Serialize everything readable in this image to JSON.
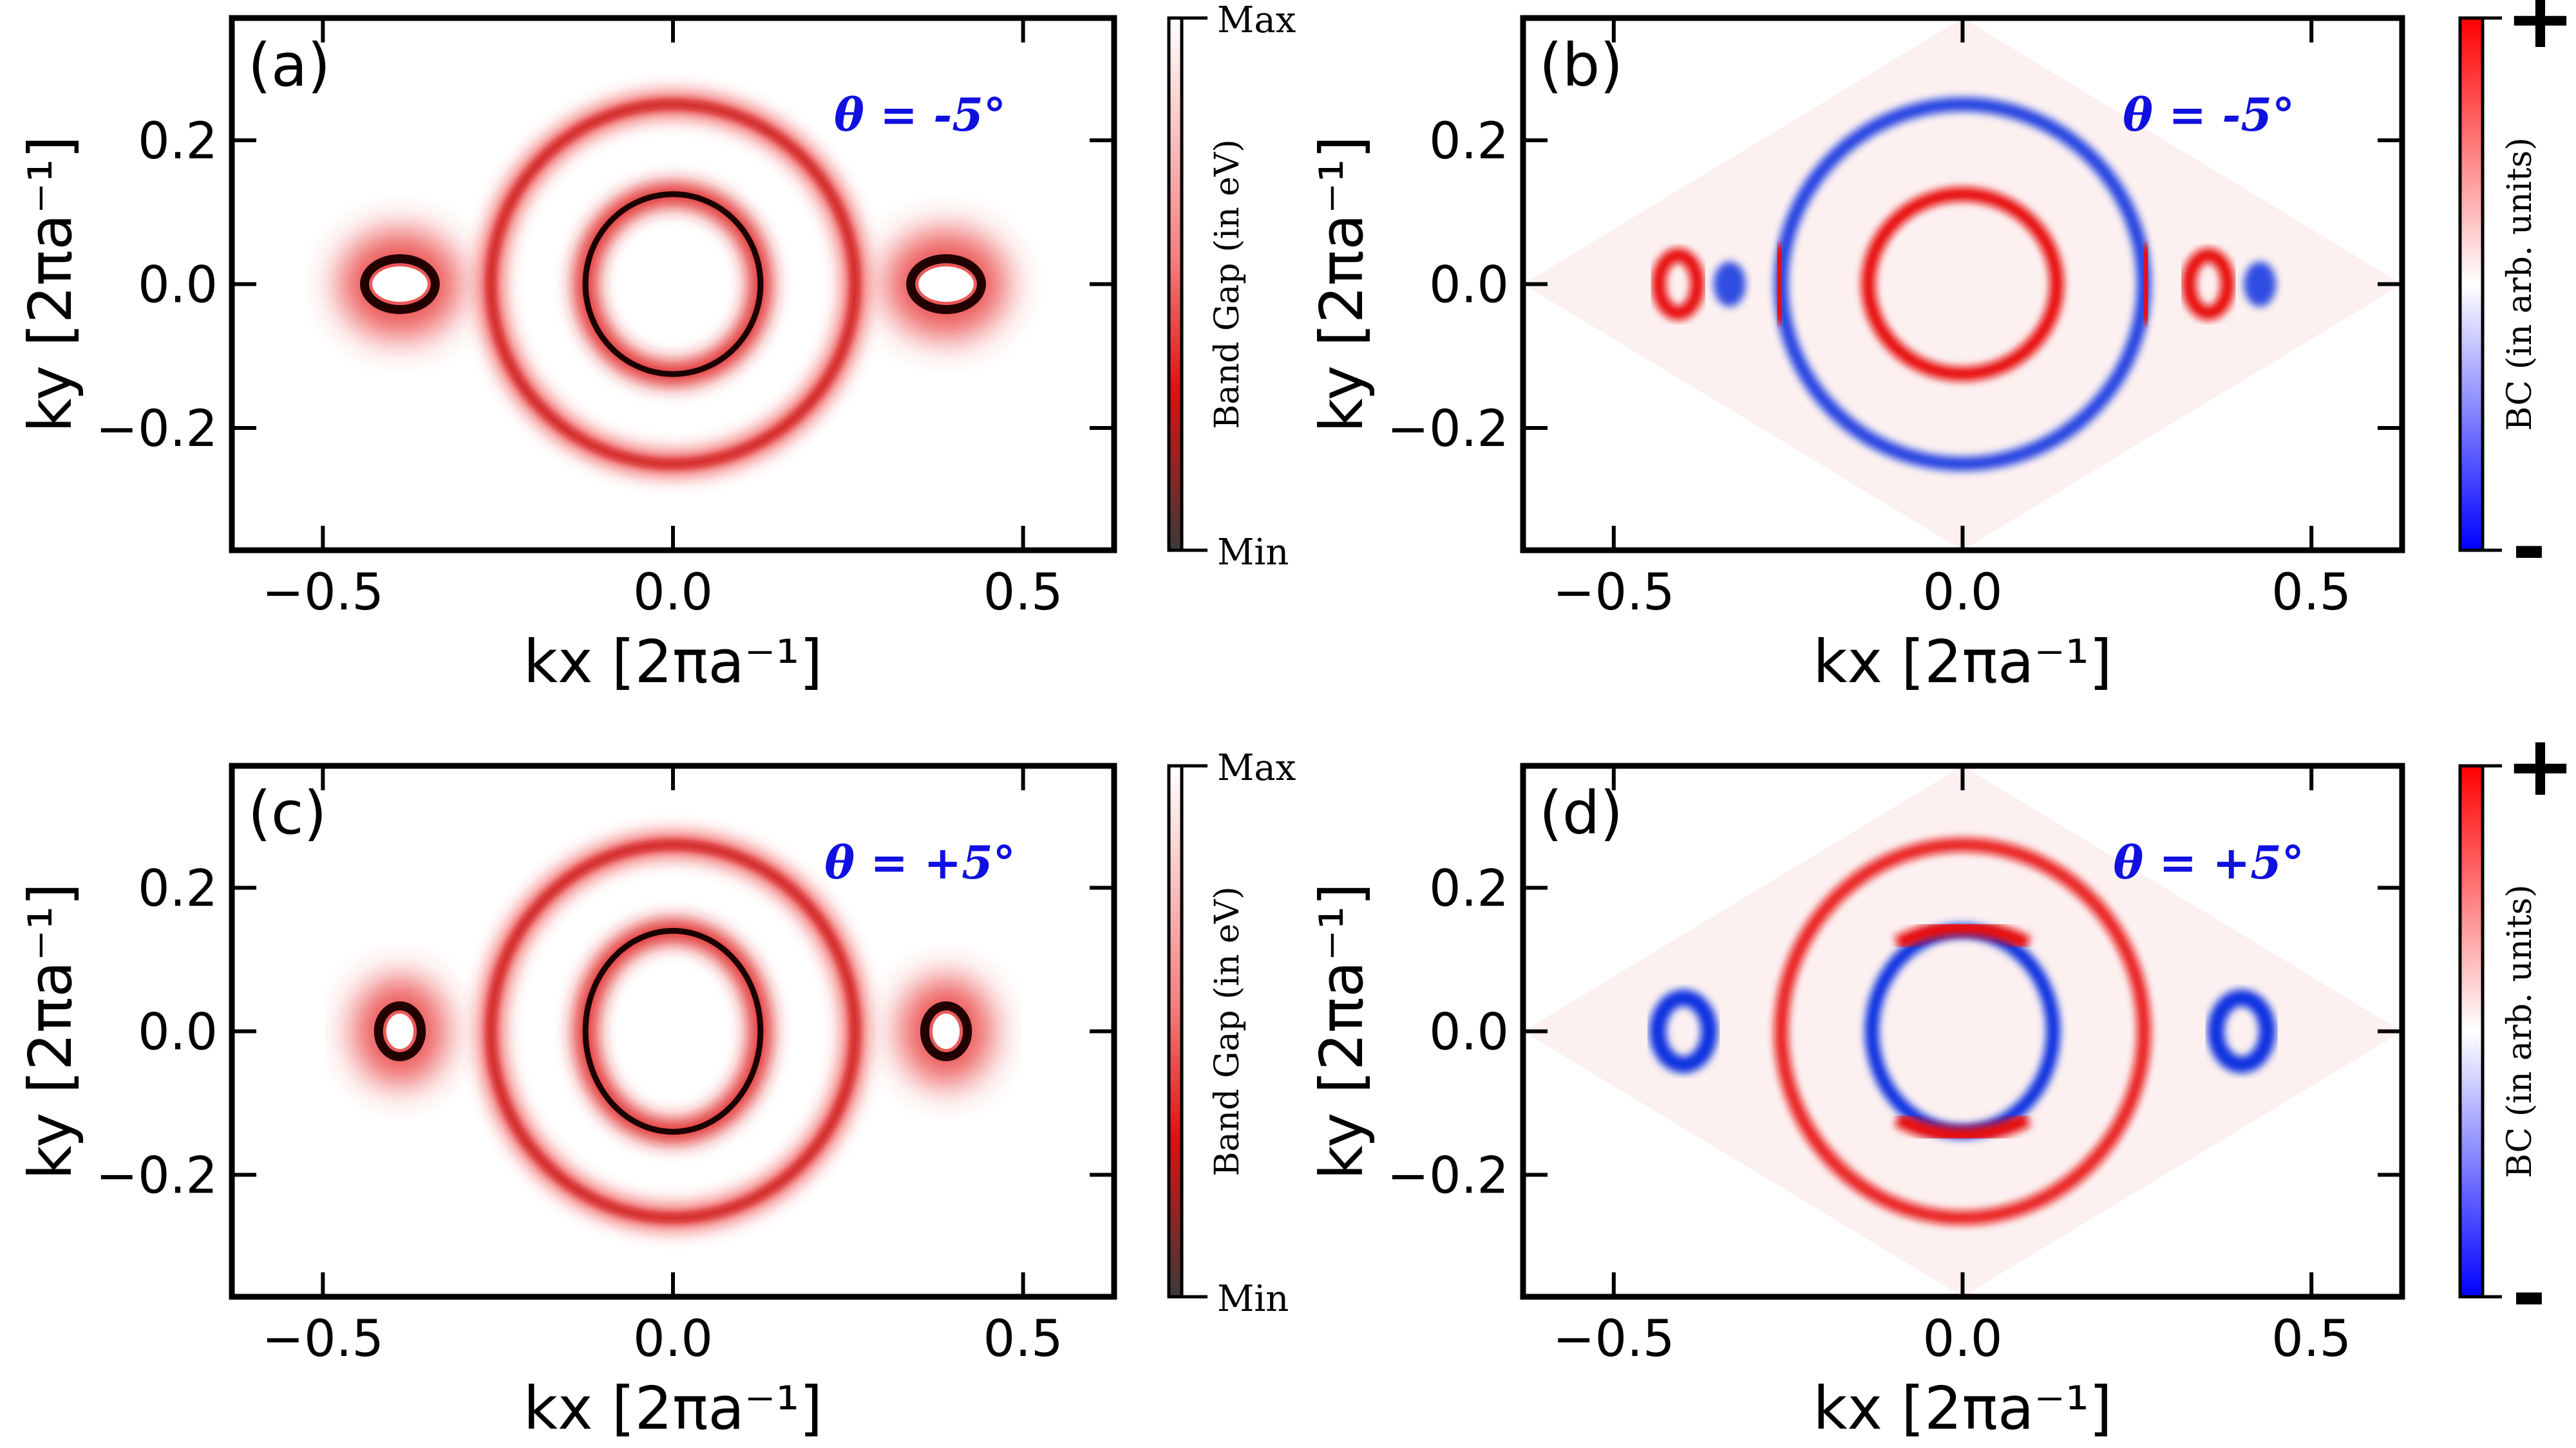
{
  "figure": {
    "panels": [
      {
        "id": "a",
        "label": "(a)",
        "theta": "θ = -5°",
        "kind": "gap",
        "xlabel": "kx [2πa⁻¹]",
        "ylabel": "ky [2πa⁻¹]",
        "colorbar": {
          "title": "Band Gap (in eV)",
          "top": "Max",
          "bottom": "Min"
        }
      },
      {
        "id": "b",
        "label": "(b)",
        "theta": "θ = -5°",
        "kind": "bc",
        "xlabel": "kx [2πa⁻¹]",
        "ylabel": "ky [2πa⁻¹]",
        "colorbar": {
          "title": "BC (in arb. units)",
          "top": "+",
          "bottom": "-"
        }
      },
      {
        "id": "c",
        "label": "(c)",
        "theta": "θ = +5°",
        "kind": "gap",
        "xlabel": "kx [2πa⁻¹]",
        "ylabel": "ky [2πa⁻¹]",
        "colorbar": {
          "title": "Band Gap (in eV)",
          "top": "Max",
          "bottom": "Min"
        }
      },
      {
        "id": "d",
        "label": "(d)",
        "theta": "θ = +5°",
        "kind": "bc",
        "xlabel": "kx [2πa⁻¹]",
        "ylabel": "ky [2πa⁻¹]",
        "colorbar": {
          "title": "BC (in arb. units)",
          "top": "+",
          "bottom": "-"
        }
      }
    ]
  },
  "chart_data": [
    {
      "type": "heatmap",
      "panel": "(a)",
      "title": "θ = -5°",
      "quantity": "Band Gap (in eV)",
      "xlabel": "kx [2πa⁻¹]",
      "ylabel": "ky [2πa⁻¹]",
      "xlim": [
        -0.63,
        0.63
      ],
      "ylim": [
        -0.37,
        0.37
      ],
      "xticks": [
        -0.5,
        0.0,
        0.5
      ],
      "xtick_labels": [
        "−0.5",
        "0.0",
        "0.5"
      ],
      "yticks": [
        -0.2,
        0.0,
        0.2
      ],
      "ytick_labels": [
        "−0.2",
        "0.0",
        "0.2"
      ],
      "features": {
        "outer_ring": {
          "center": [
            0,
            0
          ],
          "rx": 0.26,
          "ry": 0.25
        },
        "inner_ring": {
          "center": [
            0,
            0
          ],
          "rx": 0.125,
          "ry": 0.125
        },
        "side_pockets": [
          {
            "center": [
              -0.39,
              0
            ],
            "rx": 0.045,
            "ry": 0.03
          },
          {
            "center": [
              0.39,
              0
            ],
            "rx": 0.045,
            "ry": 0.03
          }
        ]
      },
      "colorbar": {
        "label": "Band Gap (in eV)",
        "ticks": [
          "Max",
          "Min"
        ]
      }
    },
    {
      "type": "heatmap",
      "panel": "(b)",
      "title": "θ = -5°",
      "quantity": "BC (in arb. units)",
      "xlabel": "kx [2πa⁻¹]",
      "ylabel": "ky [2πa⁻¹]",
      "xlim": [
        -0.63,
        0.63
      ],
      "ylim": [
        -0.37,
        0.37
      ],
      "xticks": [
        -0.5,
        0.0,
        0.5
      ],
      "xtick_labels": [
        "−0.5",
        "0.0",
        "0.5"
      ],
      "yticks": [
        -0.2,
        0.0,
        0.2
      ],
      "ytick_labels": [
        "−0.2",
        "0.0",
        "0.2"
      ],
      "features": {
        "outer_ring": {
          "center": [
            0,
            0
          ],
          "rx": 0.26,
          "ry": 0.25,
          "sign": "top/bottom negative, sides positive"
        },
        "inner_ring": {
          "center": [
            0,
            0
          ],
          "rx": 0.135,
          "ry": 0.125,
          "sign": "positive"
        },
        "side_pockets": [
          {
            "center": [
              -0.38,
              0
            ],
            "sign": "mixed"
          },
          {
            "center": [
              0.38,
              0
            ],
            "sign": "mixed"
          }
        ]
      },
      "colorbar": {
        "label": "BC (in arb. units)",
        "ticks": [
          "+",
          "-"
        ]
      }
    },
    {
      "type": "heatmap",
      "panel": "(c)",
      "title": "θ = +5°",
      "quantity": "Band Gap (in eV)",
      "xlabel": "kx [2πa⁻¹]",
      "ylabel": "ky [2πa⁻¹]",
      "xlim": [
        -0.63,
        0.63
      ],
      "ylim": [
        -0.37,
        0.37
      ],
      "xticks": [
        -0.5,
        0.0,
        0.5
      ],
      "xtick_labels": [
        "−0.5",
        "0.0",
        "0.5"
      ],
      "yticks": [
        -0.2,
        0.0,
        0.2
      ],
      "ytick_labels": [
        "−0.2",
        "0.0",
        "0.2"
      ],
      "features": {
        "outer_ring": {
          "center": [
            0,
            0
          ],
          "rx": 0.26,
          "ry": 0.26
        },
        "inner_ring": {
          "center": [
            0,
            0
          ],
          "rx": 0.125,
          "ry": 0.14
        },
        "side_pockets": [
          {
            "center": [
              -0.39,
              0
            ],
            "rx": 0.025,
            "ry": 0.03
          },
          {
            "center": [
              0.39,
              0
            ],
            "rx": 0.025,
            "ry": 0.03
          }
        ]
      },
      "colorbar": {
        "label": "Band Gap (in eV)",
        "ticks": [
          "Max",
          "Min"
        ]
      }
    },
    {
      "type": "heatmap",
      "panel": "(d)",
      "title": "θ = +5°",
      "quantity": "BC (in arb. units)",
      "xlabel": "kx [2πa⁻¹]",
      "ylabel": "ky [2πa⁻¹]",
      "xlim": [
        -0.63,
        0.63
      ],
      "ylim": [
        -0.37,
        0.37
      ],
      "xticks": [
        -0.5,
        0.0,
        0.5
      ],
      "xtick_labels": [
        "−0.5",
        "0.0",
        "0.5"
      ],
      "yticks": [
        -0.2,
        0.0,
        0.2
      ],
      "ytick_labels": [
        "−0.2",
        "0.0",
        "0.2"
      ],
      "features": {
        "outer_ring": {
          "center": [
            0,
            0
          ],
          "rx": 0.26,
          "ry": 0.26,
          "sign": "positive"
        },
        "inner_ring": {
          "center": [
            0,
            0
          ],
          "rx": 0.13,
          "ry": 0.14,
          "sign": "top/bottom positive, sides negative"
        },
        "side_pockets": [
          {
            "center": [
              -0.4,
              0
            ],
            "sign": "negative"
          },
          {
            "center": [
              0.4,
              0
            ],
            "sign": "negative"
          }
        ]
      },
      "colorbar": {
        "label": "BC (in arb. units)",
        "ticks": [
          "+",
          "-"
        ]
      }
    }
  ]
}
